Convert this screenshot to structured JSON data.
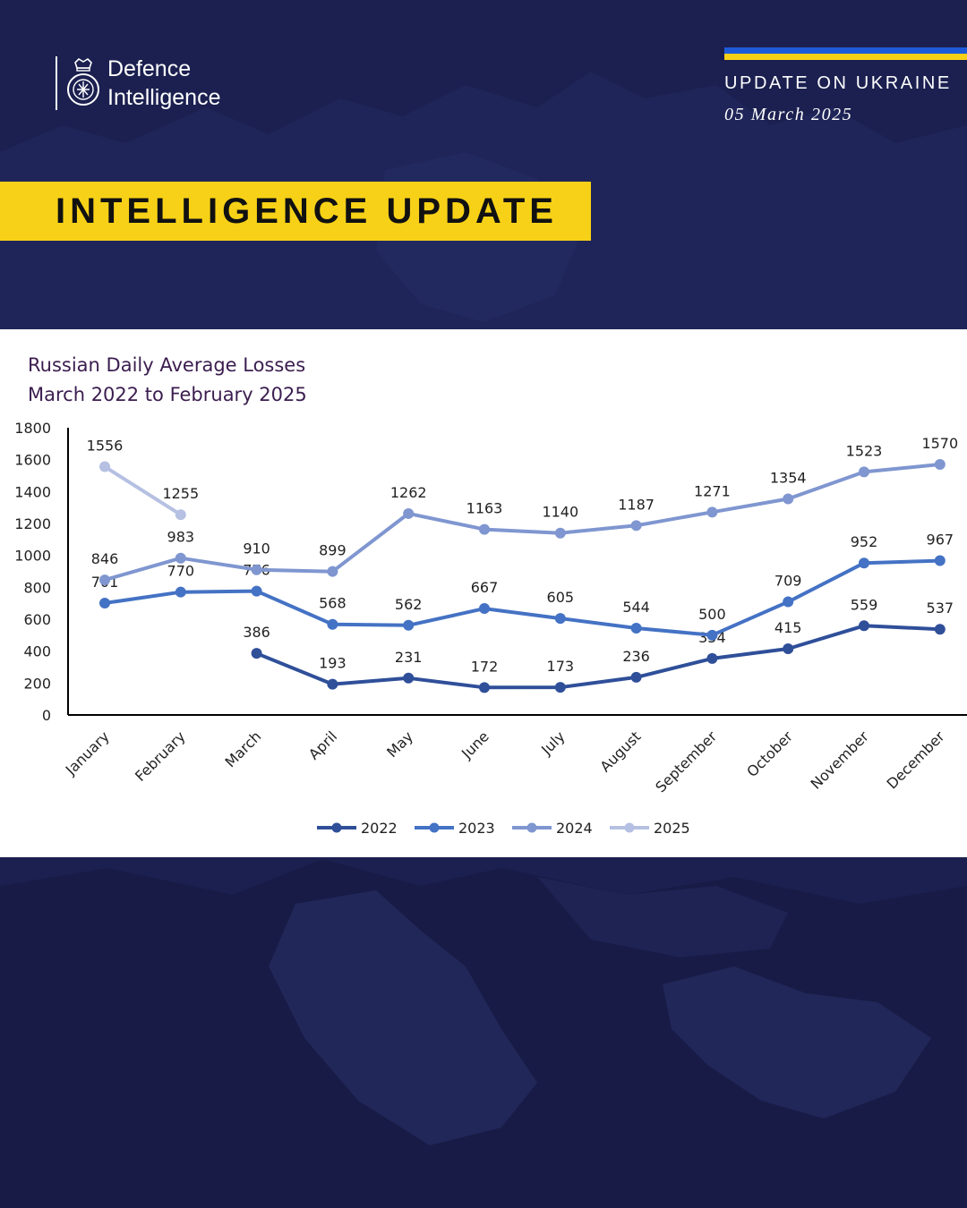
{
  "brand": {
    "line1": "Defence",
    "line2": "Intelligence"
  },
  "header": {
    "title": "UPDATE ON UKRAINE",
    "date": "05 March 2025",
    "flag_colors": [
      "#1e5bd8",
      "#f7d117"
    ]
  },
  "banner": {
    "label": "INTELLIGENCE UPDATE",
    "color": "#f7d117"
  },
  "chart_data": {
    "type": "line",
    "title": "Russian Daily Average Losses",
    "subtitle": "March 2022 to February 2025",
    "categories": [
      "January",
      "February",
      "March",
      "April",
      "May",
      "June",
      "July",
      "August",
      "September",
      "October",
      "November",
      "December"
    ],
    "yticks": [
      0,
      200,
      400,
      600,
      800,
      1000,
      1200,
      1400,
      1600,
      1800
    ],
    "ylim": [
      0,
      1800
    ],
    "grid": false,
    "legend": "bottom",
    "series": [
      {
        "name": "2022",
        "color": "#2f4f99",
        "values": [
          null,
          null,
          386,
          193,
          231,
          172,
          173,
          236,
          354,
          415,
          559,
          537
        ]
      },
      {
        "name": "2023",
        "color": "#4472c4",
        "values": [
          701,
          770,
          776,
          568,
          562,
          667,
          605,
          544,
          500,
          709,
          952,
          967
        ]
      },
      {
        "name": "2024",
        "color": "#7f96d0",
        "values": [
          846,
          983,
          910,
          899,
          1262,
          1163,
          1140,
          1187,
          1271,
          1354,
          1523,
          1570
        ]
      },
      {
        "name": "2025",
        "color": "#b5c0e2",
        "values": [
          1556,
          1255,
          null,
          null,
          null,
          null,
          null,
          null,
          null,
          null,
          null,
          null
        ]
      }
    ]
  }
}
